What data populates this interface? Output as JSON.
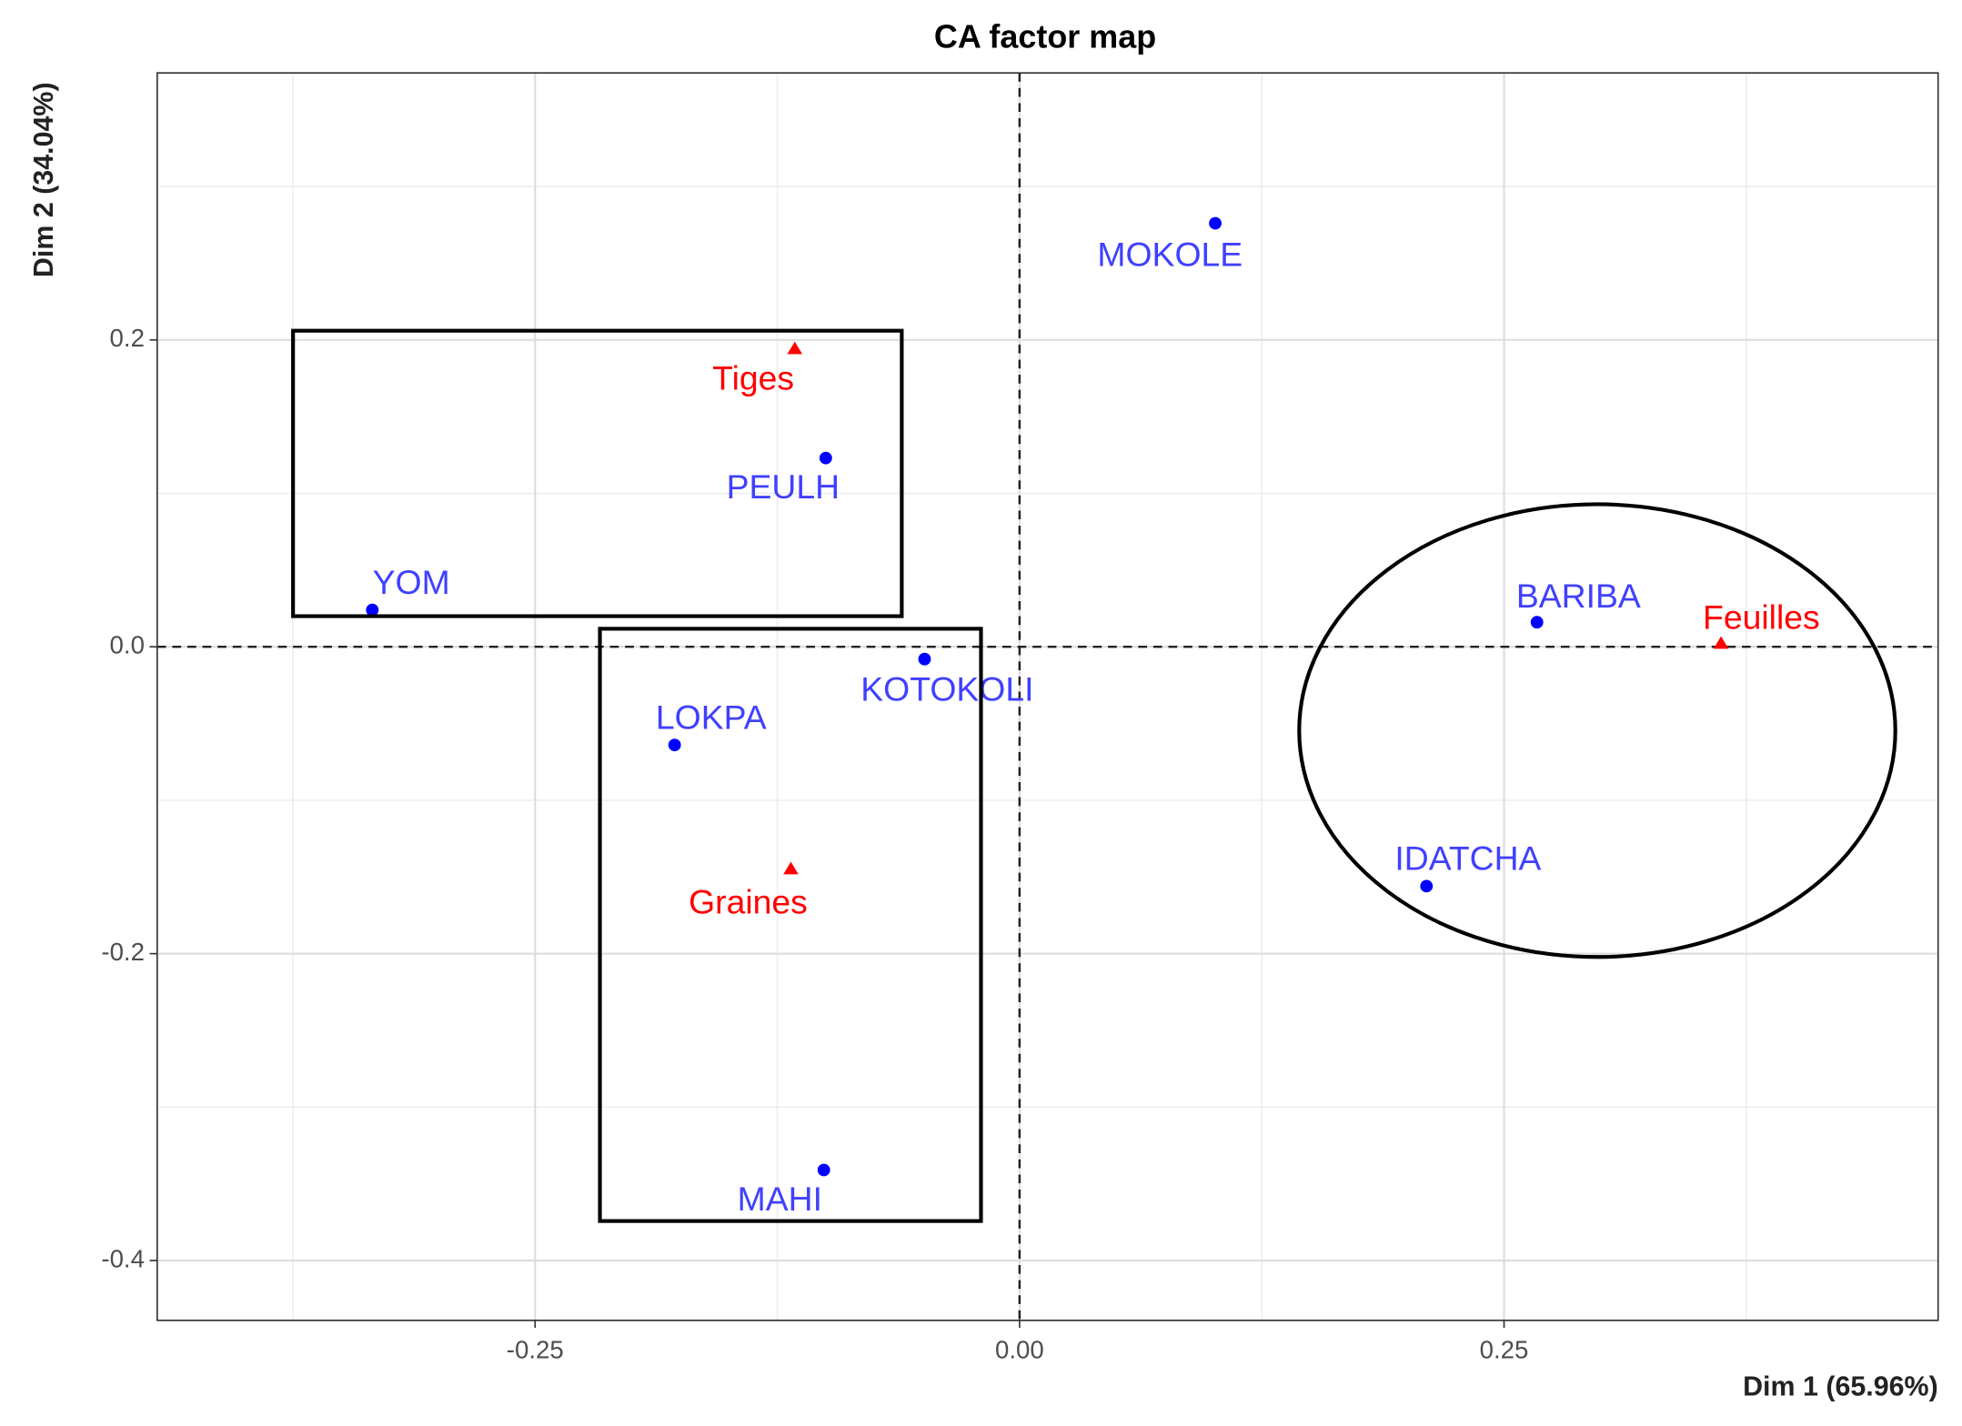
{
  "chart_data": {
    "type": "scatter",
    "title": "CA factor map",
    "xlabel": "Dim 1 (65.96%)",
    "ylabel": "Dim 2 (34.04%)",
    "xlim": [
      -0.445,
      0.474
    ],
    "ylim": [
      -0.439,
      0.374
    ],
    "xticks": [
      -0.25,
      {
        "value": 0,
        "label": "0.00"
      },
      0.25
    ],
    "yticks": [
      -0.4,
      -0.2,
      {
        "value": 0,
        "label": "0.0"
      },
      0.2
    ],
    "x_minor_ticks": [
      -0.375,
      -0.125,
      0.125,
      0.375
    ],
    "y_minor_ticks": [
      -0.3,
      -0.1,
      0.1,
      0.3
    ],
    "grid": true,
    "hline": 0,
    "vline": 0,
    "series": [
      {
        "color": "#0000ff",
        "label_color": "#4040ff",
        "marker": "circle",
        "labels": [
          "MOKOLE",
          "PEULH",
          "YOM",
          "KOTOKOLI",
          "LOKPA",
          "MAHI",
          "BARIBA",
          "IDATCHA"
        ],
        "x": [
          0.101,
          -0.1,
          -0.334,
          -0.049,
          -0.178,
          -0.101,
          0.267,
          0.21
        ],
        "values": [
          0.276,
          0.123,
          0.024,
          -0.008,
          -0.064,
          -0.341,
          0.016,
          -0.156
        ]
      },
      {
        "color": "#ff0000",
        "label_color": "#ff0000",
        "marker": "triangle",
        "labels": [
          "Tiges",
          "Graines",
          "Feuilles"
        ],
        "x": [
          -0.116,
          -0.118,
          0.362
        ],
        "values": [
          0.194,
          -0.145,
          0.002
        ]
      }
    ]
  }
}
